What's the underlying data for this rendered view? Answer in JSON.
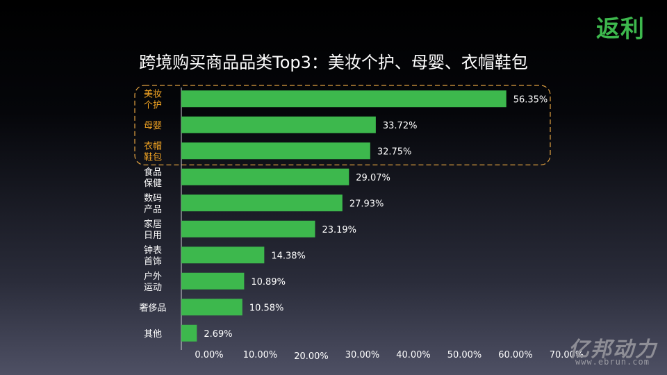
{
  "logo": "返利",
  "title": "跨境购买商品品类Top3：美妆个护、母婴、衣帽鞋包",
  "watermark": "亿邦动力",
  "watermark_url": "www.ebrun.com",
  "chart_data": {
    "type": "bar",
    "orientation": "horizontal",
    "title": "跨境购买商品品类Top3：美妆个护、母婴、衣帽鞋包",
    "categories": [
      [
        "美妆",
        "个护"
      ],
      [
        "母婴"
      ],
      [
        "衣帽",
        "鞋包"
      ],
      [
        "食品",
        "保健"
      ],
      [
        "数码",
        "产品"
      ],
      [
        "家居",
        "日用"
      ],
      [
        "钟表",
        "首饰"
      ],
      [
        "户外",
        "运动"
      ],
      [
        "奢侈品"
      ],
      [
        "其他"
      ]
    ],
    "values": [
      56.35,
      33.72,
      32.75,
      29.07,
      27.93,
      23.19,
      14.38,
      10.89,
      10.58,
      2.69
    ],
    "value_labels": [
      "56.35%",
      "33.72%",
      "32.75%",
      "29.07%",
      "27.93%",
      "23.19%",
      "14.38%",
      "10.89%",
      "10.58%",
      "2.69%"
    ],
    "xlim": [
      0,
      70
    ],
    "x_ticks": [
      "0.00%",
      "10.00%",
      "20.00%",
      "30.00%",
      "40.00%",
      "50.00%",
      "60.00%",
      "70.00%"
    ],
    "highlight_top": 3,
    "colors": {
      "bar": "#3db84d",
      "highlight_label": "#f5a623",
      "highlight_border": "#e0a040",
      "text": "#ffffff",
      "axis": "#cfcfd6"
    },
    "grid": false
  }
}
